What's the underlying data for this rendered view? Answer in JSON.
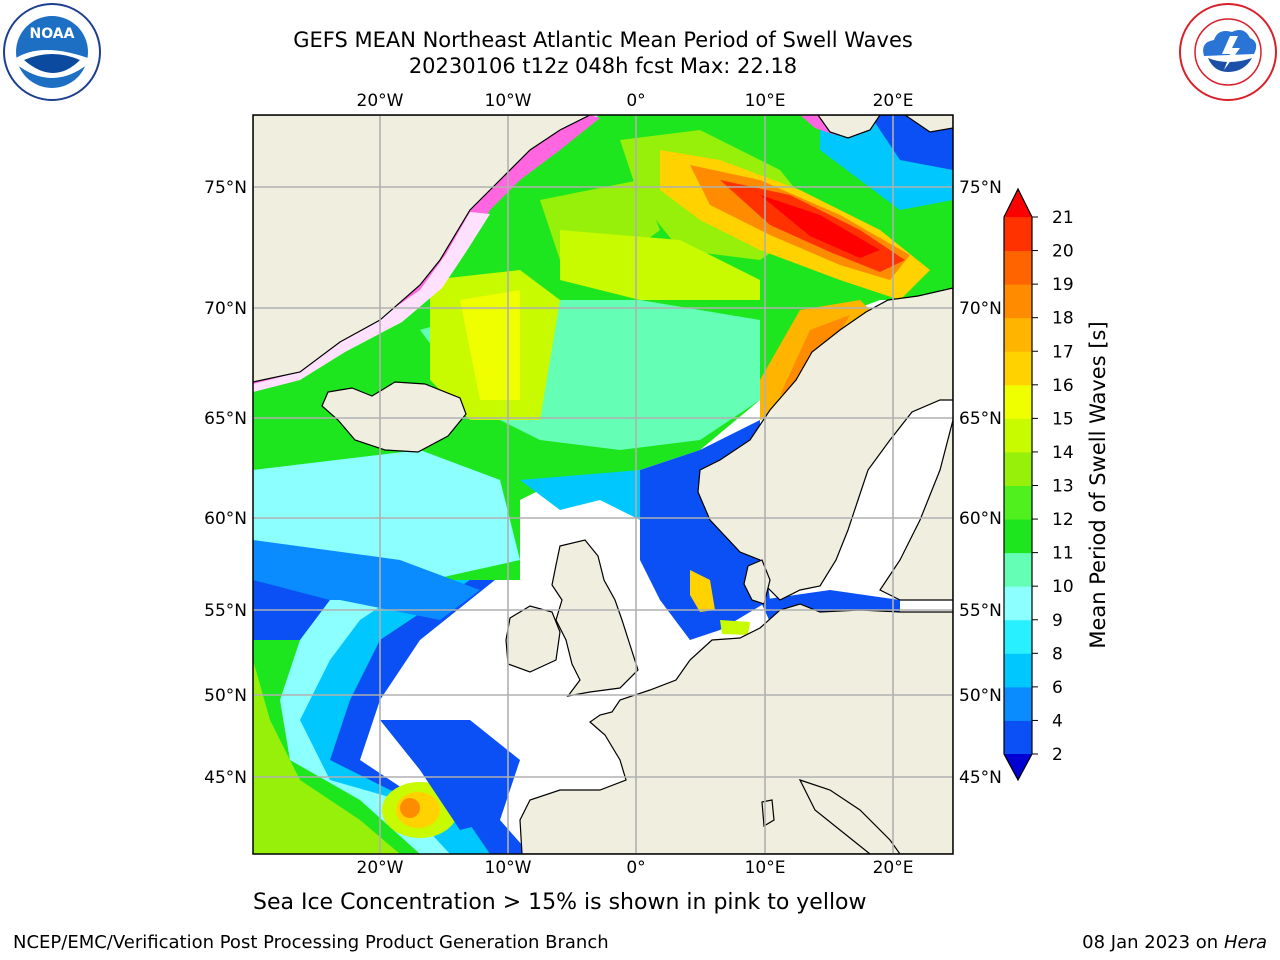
{
  "header": {
    "title_line1": "GEFS MEAN Northeast Atlantic Mean Period of Swell Waves",
    "title_line2": "20230106 t12z 048h fcst   Max: 22.18"
  },
  "map": {
    "lon_labels_top": [
      "20°W",
      "10°W",
      "0°",
      "10°E",
      "20°E"
    ],
    "lon_labels_bottom": [
      "20°W",
      "10°W",
      "0°",
      "10°E",
      "20°E"
    ],
    "lat_labels_left": [
      "75°N",
      "70°N",
      "65°N",
      "60°N",
      "55°N",
      "50°N",
      "45°N"
    ],
    "lat_labels_right": [
      "75°N",
      "70°N",
      "65°N",
      "60°N",
      "55°N",
      "50°N",
      "45°N"
    ],
    "land_color": "#efeedf",
    "grid_color": "#b0b0b0"
  },
  "colorbar": {
    "label": "Mean Period of Swell Waves [s]",
    "ticks": [
      "2",
      "4",
      "6",
      "8",
      "9",
      "10",
      "11",
      "12",
      "13",
      "14",
      "15",
      "16",
      "17",
      "18",
      "19",
      "20",
      "21"
    ],
    "colors": [
      "#0a50f5",
      "#0a8cff",
      "#00c8ff",
      "#28f0ff",
      "#8cffff",
      "#64ffb4",
      "#1ee61e",
      "#50f01e",
      "#96f00a",
      "#c8fa00",
      "#f0ff00",
      "#ffd200",
      "#ffb400",
      "#ff8c00",
      "#ff6400",
      "#ff3200",
      "#ff0000"
    ]
  },
  "logos": {
    "left": "NOAA",
    "left_ring_text": "NATIONAL OCEANIC AND ATMOSPHERIC ADMINISTRATION · U.S. DEPARTMENT OF COMMERCE",
    "right_ring_text": "NATIONAL WEATHER SERVICE"
  },
  "note": "Sea Ice Concentration > 15% is shown in pink to yellow",
  "footer": {
    "left": "NCEP/EMC/Verification Post Processing Product Generation Branch",
    "right_date": "08 Jan 2023 on ",
    "right_host": "Hera"
  }
}
